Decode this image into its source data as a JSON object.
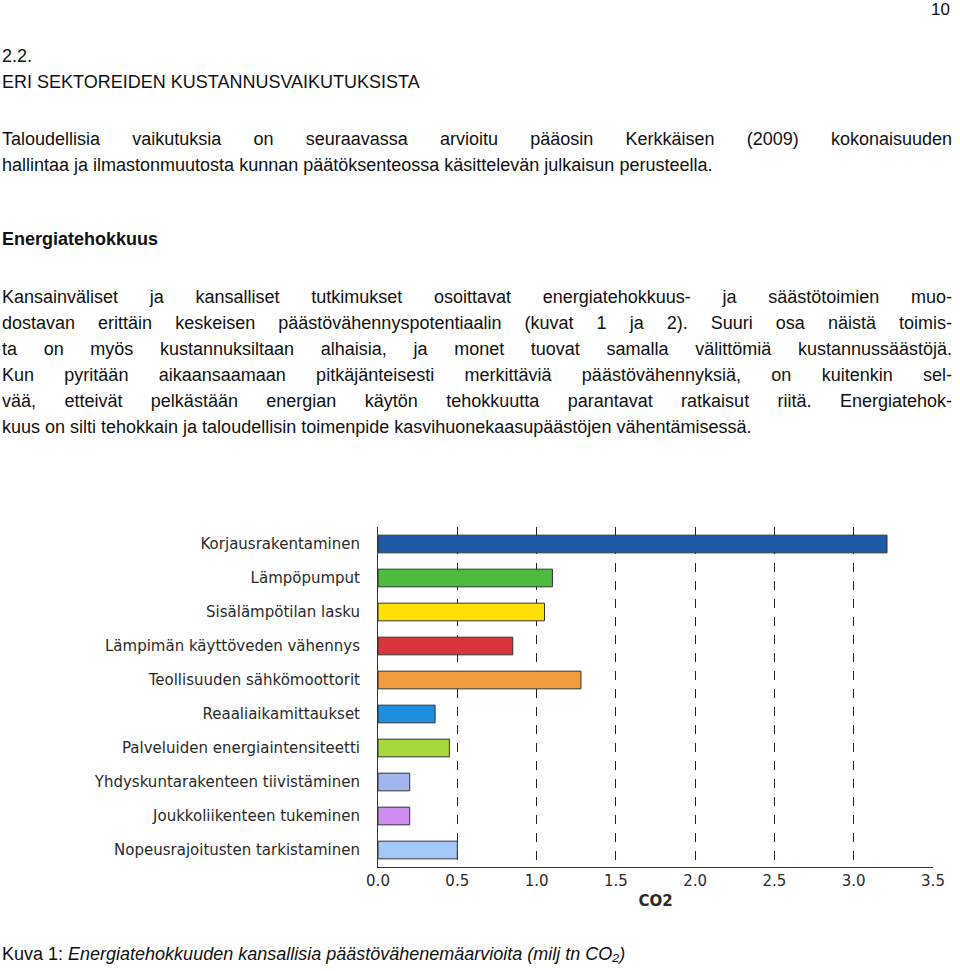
{
  "page_number": "10",
  "section": {
    "number": "2.2.",
    "title": "ERI SEKTOREIDEN KUSTANNUSVAIKUTUKSISTA"
  },
  "intro_lines": [
    "Taloudellisia vaikutuksia on seuraavassa arvioitu pääosin Kerkkäisen (2009) kokonaisuuden",
    "hallintaa ja ilmastonmuutosta kunnan päätöksenteossa käsittelevän julkaisun perusteella."
  ],
  "subheading": "Energiatehokkuus",
  "body_lines": [
    "Kansainväliset ja kansalliset tutkimukset osoittavat energiatehokkuus- ja säästötoimien muo-",
    "dostavan erittäin keskeisen päästövähennyspotentiaalin (kuvat 1 ja 2). Suuri osa näistä toimis-",
    "ta on myös kustannuksiltaan alhaisia, ja monet tuovat samalla välittömiä kustannussäästöjä.",
    "Kun pyritään aikaansaamaan pitkäjänteisesti merkittäviä päästövähennyksiä, on kuitenkin sel-",
    "vää, etteivät pelkästään energian käytön tehokkuutta parantavat ratkaisut riitä. Energiatehok-",
    "kuus on silti tehokkain ja taloudellisin toimenpide kasvihuonekaasupäästöjen vähentämisessä."
  ],
  "chart_data": {
    "type": "bar",
    "orientation": "horizontal",
    "categories": [
      "Korjausrakentaminen",
      "Lämpöpumput",
      "Sisälämpötilan lasku",
      "Lämpimän käyttöveden vähennys",
      "Teollisuuden sähkömoottorit",
      "Reaaliaikamittaukset",
      "Palveluiden energiaintensiteetti",
      "Yhdyskuntarakenteen tiivistäminen",
      "Joukkoliikenteen tukeminen",
      "Nopeusrajoitusten tarkistaminen"
    ],
    "values": [
      3.21,
      1.1,
      1.05,
      0.85,
      1.28,
      0.36,
      0.45,
      0.2,
      0.2,
      0.5
    ],
    "colors": [
      "#1f5aa8",
      "#4dbb3d",
      "#ffe000",
      "#d8343b",
      "#f29b3d",
      "#1e8ee0",
      "#a8d83b",
      "#a3b5ef",
      "#cf8cf1",
      "#a3c9f8"
    ],
    "xlabel": "CO2",
    "xlim": [
      0,
      3.5
    ],
    "xticks": [
      {
        "value": 0,
        "label": "0.0"
      },
      {
        "value": 0.5,
        "label": "0.5"
      },
      {
        "value": 1,
        "label": "1.0"
      },
      {
        "value": 1.5,
        "label": "1.5"
      },
      {
        "value": 2,
        "label": "2.0"
      },
      {
        "value": 2.5,
        "label": "2.5"
      },
      {
        "value": 3,
        "label": "3.0"
      },
      {
        "value": 3.5,
        "label": "3.5"
      }
    ],
    "grid": true
  },
  "caption": {
    "label": "Kuva 1:",
    "text": "Energiatehokkuuden kansallisia päästövähenemäarvioita (milj tn CO₂)"
  }
}
